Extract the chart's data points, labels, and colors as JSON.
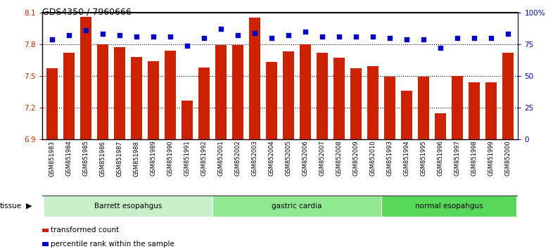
{
  "title": "GDS4350 / 7960666",
  "samples": [
    "GSM851983",
    "GSM851984",
    "GSM851985",
    "GSM851986",
    "GSM851987",
    "GSM851988",
    "GSM851989",
    "GSM851990",
    "GSM851991",
    "GSM851992",
    "GSM852001",
    "GSM852002",
    "GSM852003",
    "GSM852004",
    "GSM852005",
    "GSM852006",
    "GSM852007",
    "GSM852008",
    "GSM852009",
    "GSM852010",
    "GSM851993",
    "GSM851994",
    "GSM851995",
    "GSM851996",
    "GSM851997",
    "GSM851998",
    "GSM851999",
    "GSM852000"
  ],
  "bar_values": [
    7.57,
    7.72,
    8.06,
    7.8,
    7.77,
    7.68,
    7.64,
    7.74,
    7.27,
    7.58,
    7.79,
    7.79,
    8.05,
    7.63,
    7.73,
    7.8,
    7.72,
    7.67,
    7.57,
    7.59,
    7.49,
    7.36,
    7.49,
    7.15,
    7.5,
    7.44,
    7.44,
    7.72
  ],
  "percentile_values": [
    79,
    82,
    86,
    83,
    82,
    81,
    81,
    81,
    74,
    80,
    87,
    82,
    84,
    80,
    82,
    85,
    81,
    81,
    81,
    81,
    80,
    79,
    79,
    72,
    80,
    80,
    80,
    83
  ],
  "groups": [
    {
      "label": "Barrett esopahgus",
      "start": 0,
      "end": 9,
      "color": "#c8f0c8"
    },
    {
      "label": "gastric cardia",
      "start": 10,
      "end": 19,
      "color": "#90e890"
    },
    {
      "label": "normal esopahgus",
      "start": 20,
      "end": 27,
      "color": "#58d858"
    }
  ],
  "bar_color": "#cc2200",
  "dot_color": "#0000cc",
  "bar_bottom": 6.9,
  "ylim_left": [
    6.9,
    8.1
  ],
  "ylim_right": [
    0,
    100
  ],
  "yticks_left": [
    6.9,
    7.2,
    7.5,
    7.8,
    8.1
  ],
  "yticks_right": [
    0,
    25,
    50,
    75,
    100
  ],
  "ytick_labels_right": [
    "0",
    "25",
    "50",
    "75",
    "100%"
  ],
  "hlines": [
    7.2,
    7.5,
    7.8
  ],
  "plot_bg": "#ffffff",
  "fig_bg": "#ffffff",
  "legend_items": [
    {
      "label": "transformed count",
      "color": "#cc2200"
    },
    {
      "label": "percentile rank within the sample",
      "color": "#0000cc"
    }
  ]
}
